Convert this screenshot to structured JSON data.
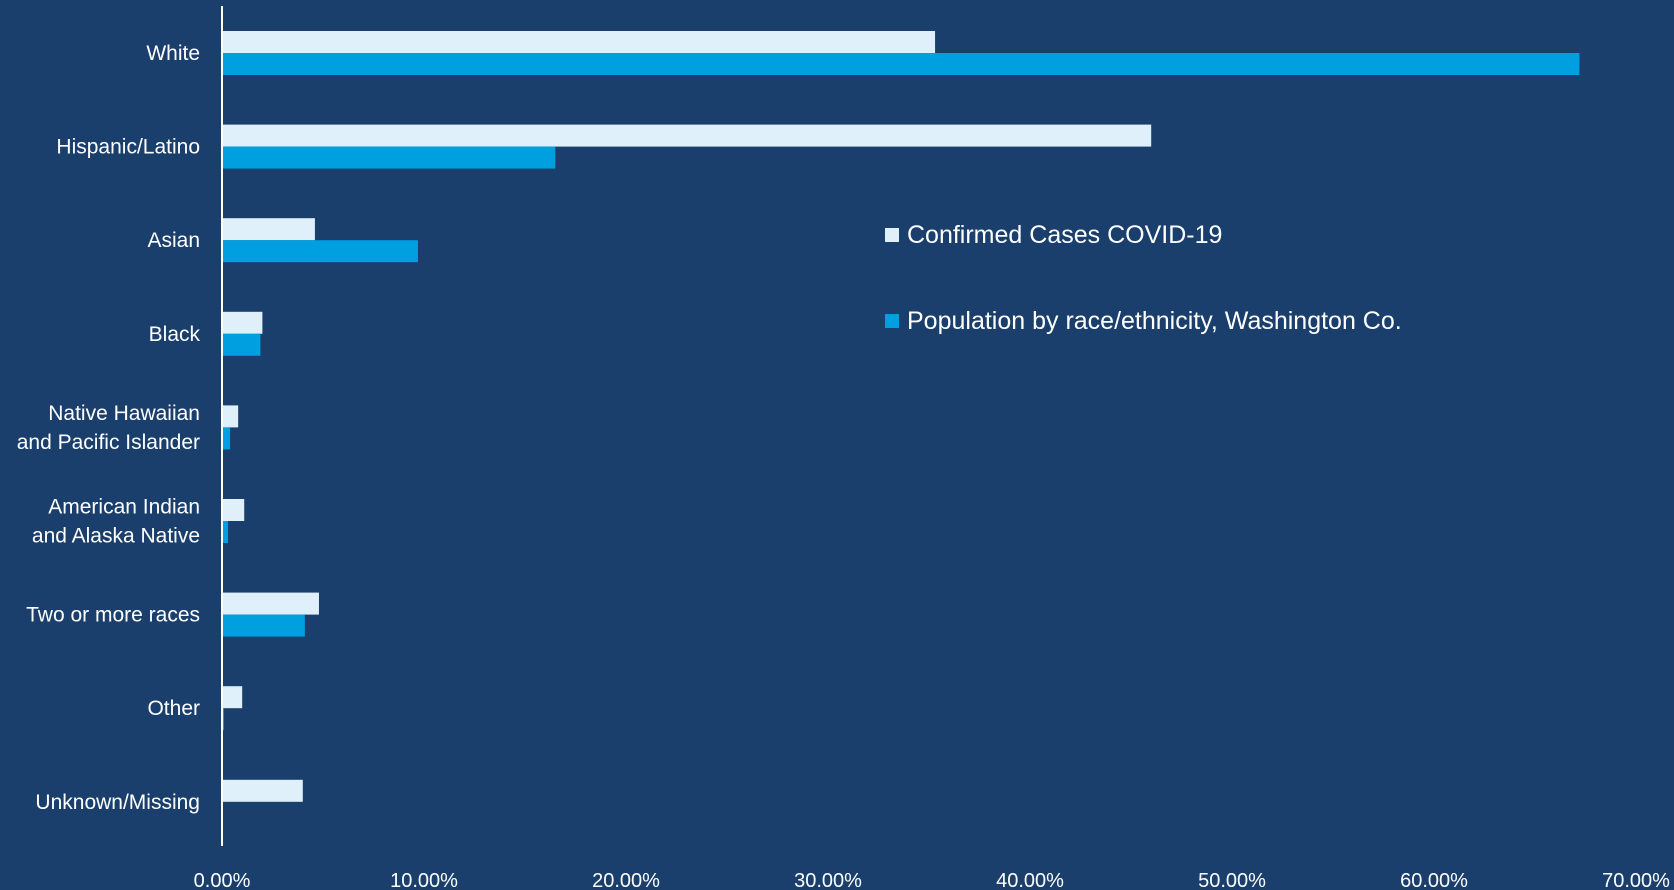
{
  "chart_data": {
    "type": "bar",
    "orientation": "horizontal",
    "title": "",
    "xlabel": "",
    "ylabel": "",
    "xlim": [
      0,
      0.7
    ],
    "grid": false,
    "legend_position": "right-middle",
    "categories": [
      [
        "White"
      ],
      [
        "Hispanic/Latino"
      ],
      [
        "Asian"
      ],
      [
        "Black"
      ],
      [
        "Native Hawaiian",
        "and Pacific Islander"
      ],
      [
        "American Indian",
        "and Alaska Native"
      ],
      [
        "Two or more races"
      ],
      [
        "Other"
      ],
      [
        "Unknown/Missing"
      ]
    ],
    "x_ticks": [
      "0.00%",
      "10.00%",
      "20.00%",
      "30.00%",
      "40.00%",
      "50.00%",
      "60.00%",
      "70.00%"
    ],
    "x_tick_values": [
      0,
      0.1,
      0.2,
      0.3,
      0.4,
      0.5,
      0.6,
      0.7
    ],
    "series": [
      {
        "name": "Confirmed Cases COVID-19",
        "color": "#dff0fb",
        "values": [
          0.353,
          0.46,
          0.046,
          0.02,
          0.008,
          0.011,
          0.048,
          0.01,
          0.04
        ]
      },
      {
        "name": "Population by race/ethnicity, Washington Co.",
        "color": "#009fdf",
        "values": [
          0.672,
          0.165,
          0.097,
          0.019,
          0.004,
          0.003,
          0.041,
          0.001,
          0.0
        ]
      }
    ]
  },
  "colors": {
    "background": "#1a3f6c",
    "axis": "#ffffff",
    "text": "#ffffff"
  }
}
